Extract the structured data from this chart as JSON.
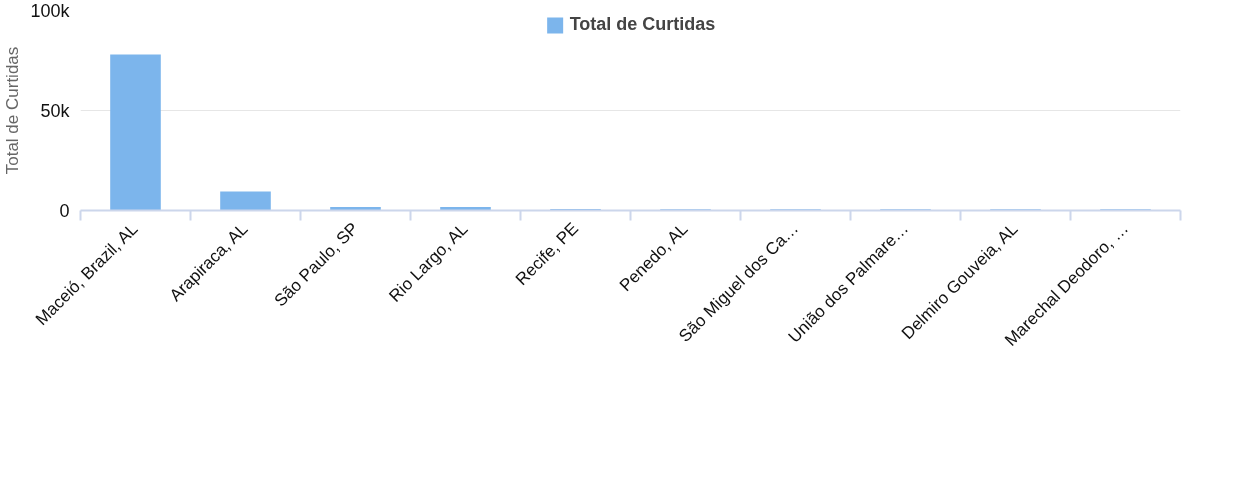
{
  "chart_data": {
    "type": "bar",
    "categories": [
      "Maceió, Brazil, AL",
      "Arapiraca, AL",
      "São Paulo, SP",
      "Rio Largo, AL",
      "Recife, PE",
      "Penedo, AL",
      "São Miguel dos Ca…",
      "União dos Palmare…",
      "Delmiro Gouveia, AL",
      "Marechal Deodoro, …"
    ],
    "series": [
      {
        "name": "Total de Curtidas",
        "color": "#7cb5ec",
        "values": [
          78000,
          9500,
          1700,
          1700,
          700,
          600,
          600,
          600,
          600,
          600
        ]
      }
    ],
    "ylabel": "Total de Curtidas",
    "ylim": [
      0,
      100000
    ],
    "yticks": [
      {
        "value": 0,
        "label": "0"
      },
      {
        "value": 50000,
        "label": "50k"
      },
      {
        "value": 100000,
        "label": "100k"
      }
    ],
    "grid": "y",
    "legend": "top"
  }
}
